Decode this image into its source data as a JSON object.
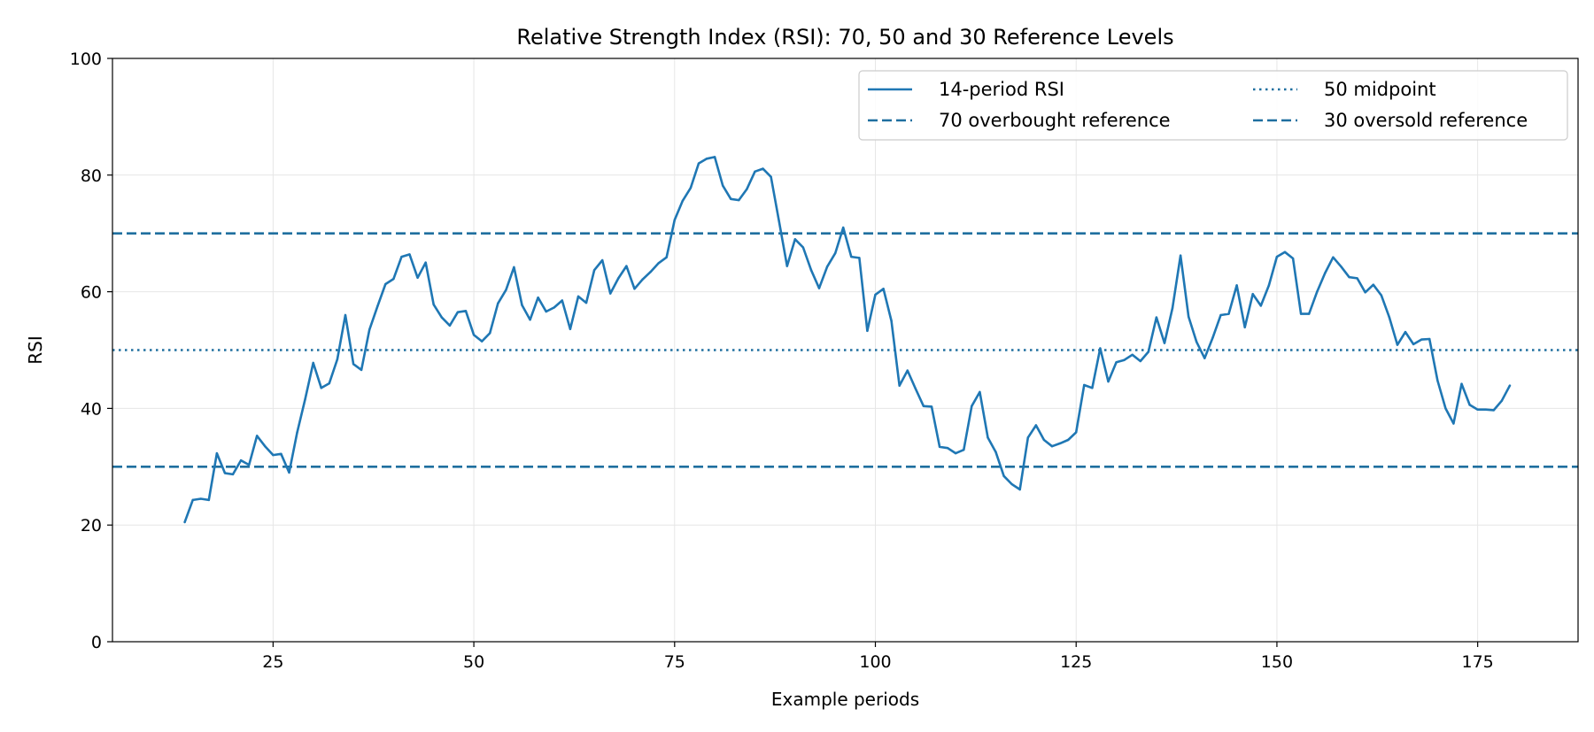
{
  "chart_data": {
    "type": "line",
    "title": "Relative Strength Index (RSI): 70, 50 and 30 Reference Levels",
    "xlabel": "Example periods",
    "ylabel": "RSI",
    "xlim": [
      5,
      187.5
    ],
    "ylim": [
      0,
      100
    ],
    "xticks": [
      25,
      50,
      75,
      100,
      125,
      150,
      175
    ],
    "yticks": [
      0,
      20,
      40,
      60,
      80,
      100
    ],
    "grid": true,
    "legend_position": "top-right",
    "series": [
      {
        "name": "14-period RSI",
        "style": "solid",
        "color": "#1f77b4",
        "x": [
          14,
          15,
          16,
          17,
          18,
          19,
          20,
          21,
          22,
          23,
          24,
          25,
          26,
          27,
          28,
          29,
          30,
          31,
          32,
          33,
          34,
          35,
          36,
          37,
          38,
          39,
          40,
          41,
          42,
          43,
          44,
          45,
          46,
          47,
          48,
          49,
          50,
          51,
          52,
          53,
          54,
          55,
          56,
          57,
          58,
          59,
          60,
          61,
          62,
          63,
          64,
          65,
          66,
          67,
          68,
          69,
          70,
          71,
          72,
          73,
          74,
          75,
          76,
          77,
          78,
          79,
          80,
          81,
          82,
          83,
          84,
          85,
          86,
          87,
          88,
          89,
          90,
          91,
          92,
          93,
          94,
          95,
          96,
          97,
          98,
          99,
          100,
          101,
          102,
          103,
          104,
          105,
          106,
          107,
          108,
          109,
          110,
          111,
          112,
          113,
          114,
          115,
          116,
          117,
          118,
          119,
          120,
          121,
          122,
          123,
          124,
          125,
          126,
          127,
          128,
          129,
          130,
          131,
          132,
          133,
          134,
          135,
          136,
          137,
          138,
          139,
          140,
          141,
          142,
          143,
          144,
          145,
          146,
          147,
          148,
          149,
          150,
          151,
          152,
          153,
          154,
          155,
          156,
          157,
          158,
          159,
          160,
          161,
          162,
          163,
          164,
          165,
          166,
          167,
          168,
          169,
          170,
          171,
          172,
          173,
          174,
          175,
          176,
          177,
          178,
          179
        ],
        "y": [
          20.5,
          24.3,
          24.5,
          24.3,
          32.3,
          28.9,
          28.7,
          31.1,
          30.3,
          35.3,
          33.5,
          32.0,
          32.2,
          29.0,
          35.9,
          41.6,
          47.8,
          43.5,
          44.3,
          48.4,
          56.0,
          47.6,
          46.6,
          53.5,
          57.5,
          61.3,
          62.2,
          66.0,
          66.4,
          62.4,
          65.0,
          57.8,
          55.6,
          54.2,
          56.5,
          56.7,
          52.6,
          51.5,
          52.9,
          58.0,
          60.3,
          64.2,
          57.7,
          55.2,
          59.0,
          56.6,
          57.3,
          58.5,
          53.6,
          59.2,
          58.1,
          63.7,
          65.4,
          59.7,
          62.3,
          64.4,
          60.5,
          62.1,
          63.4,
          64.9,
          65.9,
          72.3,
          75.6,
          77.8,
          82.0,
          82.8,
          83.1,
          78.2,
          75.9,
          75.7,
          77.6,
          80.6,
          81.1,
          79.7,
          72.1,
          64.4,
          69.0,
          67.6,
          63.7,
          60.6,
          64.3,
          66.6,
          71.0,
          66.0,
          65.8,
          53.3,
          59.5,
          60.5,
          55.0,
          43.9,
          46.5,
          43.4,
          40.4,
          40.3,
          33.4,
          33.2,
          32.3,
          32.9,
          40.4,
          42.8,
          35.0,
          32.5,
          28.4,
          27.0,
          26.1,
          35.0,
          37.1,
          34.6,
          33.5,
          34.0,
          34.6,
          35.9,
          44.0,
          43.5,
          50.3,
          44.6,
          47.9,
          48.3,
          49.2,
          48.1,
          49.7,
          55.6,
          51.2,
          57.2,
          66.2,
          55.7,
          51.4,
          48.6,
          52.1,
          56.0,
          56.2,
          61.1,
          53.9,
          59.6,
          57.6,
          61.1,
          66.0,
          66.8,
          65.7,
          56.2,
          56.2,
          60.0,
          63.2,
          65.9,
          64.3,
          62.5,
          62.3,
          59.9,
          61.2,
          59.4,
          55.6,
          50.9,
          53.1,
          51.0,
          51.8,
          51.9,
          44.8,
          40.0,
          37.4,
          44.2,
          40.6,
          39.8,
          39.8,
          39.7,
          41.3,
          43.9
        ]
      },
      {
        "name": "70 overbought reference",
        "style": "dashed",
        "color": "#1f6f9f",
        "y_constant": 70
      },
      {
        "name": "50 midpoint",
        "style": "dotted",
        "color": "#1f6f9f",
        "y_constant": 50
      },
      {
        "name": "30 oversold reference",
        "style": "dashed",
        "color": "#1f6f9f",
        "y_constant": 30
      }
    ]
  }
}
